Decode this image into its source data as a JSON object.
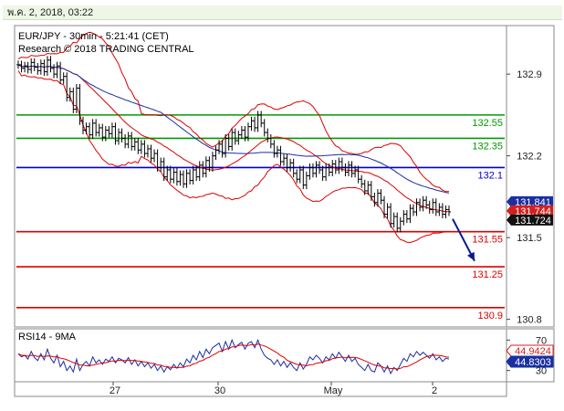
{
  "header": {
    "datetime": "พ.ค. 2, 2018, 03:22"
  },
  "chart_data": {
    "type": "line",
    "title": "EUR/JPY - 30min - 5:21:41 (CET)",
    "subtitle": "Research © 2018 TRADING CENTRAL",
    "ylim": [
      130.75,
      133.3
    ],
    "y_ticks": [
      {
        "value": 132.9,
        "label": "132.9"
      },
      {
        "value": 132.2,
        "label": "132.2"
      },
      {
        "value": 131.5,
        "label": "131.5"
      },
      {
        "value": 130.8,
        "label": "130.8"
      }
    ],
    "x_ticks": [
      "27",
      "30",
      "May",
      "2"
    ],
    "horizontal_levels": [
      {
        "value": 132.55,
        "label": "132.55",
        "color": "#009900"
      },
      {
        "value": 132.35,
        "label": "132.35",
        "color": "#009900"
      },
      {
        "value": 132.1,
        "label": "132.1",
        "color": "#0000cc"
      },
      {
        "value": 131.55,
        "label": "131.55",
        "color": "#dd0000"
      },
      {
        "value": 131.25,
        "label": "131.25",
        "color": "#dd0000"
      },
      {
        "value": 130.9,
        "label": "130.9",
        "color": "#dd0000"
      }
    ],
    "price_badges": [
      {
        "value": 131.841,
        "label": "131.841",
        "color": "#1a2fa0"
      },
      {
        "value": 131.744,
        "label": "131.744",
        "color": "#d42020"
      },
      {
        "value": 131.724,
        "label": "131.724",
        "color": "#111111"
      }
    ],
    "forecast_arrow": {
      "from": 131.66,
      "to": 131.3,
      "color": "#0a1a8f"
    },
    "price_series": [
      132.98,
      132.95,
      132.97,
      132.94,
      133.0,
      132.96,
      132.93,
      132.99,
      132.92,
      133.02,
      132.95,
      132.9,
      132.97,
      132.85,
      132.88,
      132.7,
      132.75,
      132.6,
      132.78,
      132.5,
      132.42,
      132.45,
      132.38,
      132.48,
      132.4,
      132.44,
      132.36,
      132.42,
      132.39,
      132.45,
      132.33,
      132.4,
      132.35,
      132.3,
      132.37,
      132.28,
      132.32,
      132.25,
      132.3,
      132.22,
      132.26,
      132.18,
      132.22,
      132.1,
      132.15,
      132.02,
      132.08,
      132.0,
      132.06,
      131.98,
      132.04,
      131.96,
      132.05,
      131.99,
      132.08,
      132.02,
      132.12,
      132.05,
      132.16,
      132.1,
      132.2,
      132.25,
      132.3,
      132.22,
      132.35,
      132.28,
      132.4,
      132.33,
      132.38,
      132.42,
      132.36,
      132.45,
      132.5,
      132.44,
      132.55,
      132.48,
      132.4,
      132.35,
      132.3,
      132.22,
      132.25,
      132.15,
      132.18,
      132.1,
      132.14,
      132.05,
      132.0,
      132.08,
      131.95,
      132.03,
      132.1,
      132.05,
      132.12,
      132.08,
      132.02,
      132.1,
      132.06,
      132.13,
      132.08,
      132.15,
      132.1,
      132.06,
      132.12,
      132.05,
      132.08,
      132.0,
      131.96,
      131.9,
      131.95,
      131.85,
      131.8,
      131.88,
      131.82,
      131.7,
      131.76,
      131.62,
      131.68,
      131.58,
      131.64,
      131.7,
      131.66,
      131.75,
      131.72,
      131.8,
      131.76,
      131.82,
      131.78,
      131.74,
      131.8,
      131.72,
      131.76,
      131.7,
      131.74,
      131.72
    ],
    "rsi": {
      "label": "RSI14 - 9MA",
      "ylim": [
        20,
        80
      ],
      "y_ticks": [
        {
          "value": 70,
          "label": "70"
        },
        {
          "value": 30,
          "label": "30"
        }
      ],
      "badges": [
        {
          "value": 44.9424,
          "label": "44.9424",
          "color": "#d42020"
        },
        {
          "value": 44.8303,
          "label": "44.8303",
          "color": "#1a2fa0"
        }
      ],
      "rsi_series": [
        52,
        48,
        50,
        45,
        55,
        47,
        43,
        52,
        44,
        58,
        46,
        40,
        50,
        35,
        42,
        30,
        36,
        28,
        45,
        30,
        38,
        42,
        36,
        48,
        40,
        44,
        38,
        45,
        42,
        48,
        40,
        46,
        44,
        40,
        47,
        38,
        44,
        36,
        42,
        35,
        40,
        33,
        38,
        30,
        36,
        28,
        35,
        31,
        38,
        33,
        40,
        35,
        45,
        40,
        50,
        44,
        55,
        47,
        58,
        52,
        60,
        63,
        66,
        55,
        68,
        58,
        70,
        60,
        64,
        67,
        58,
        66,
        68,
        60,
        70,
        58,
        50,
        46,
        44,
        38,
        44,
        36,
        42,
        34,
        40,
        34,
        30,
        40,
        32,
        38,
        48,
        44,
        50,
        46,
        40,
        48,
        44,
        52,
        46,
        54,
        48,
        42,
        50,
        42,
        46,
        38,
        34,
        30,
        38,
        30,
        28,
        40,
        36,
        28,
        36,
        26,
        34,
        30,
        38,
        46,
        42,
        52,
        48,
        55,
        50,
        54,
        50,
        46,
        52,
        44,
        48,
        42,
        46,
        45
      ]
    }
  }
}
